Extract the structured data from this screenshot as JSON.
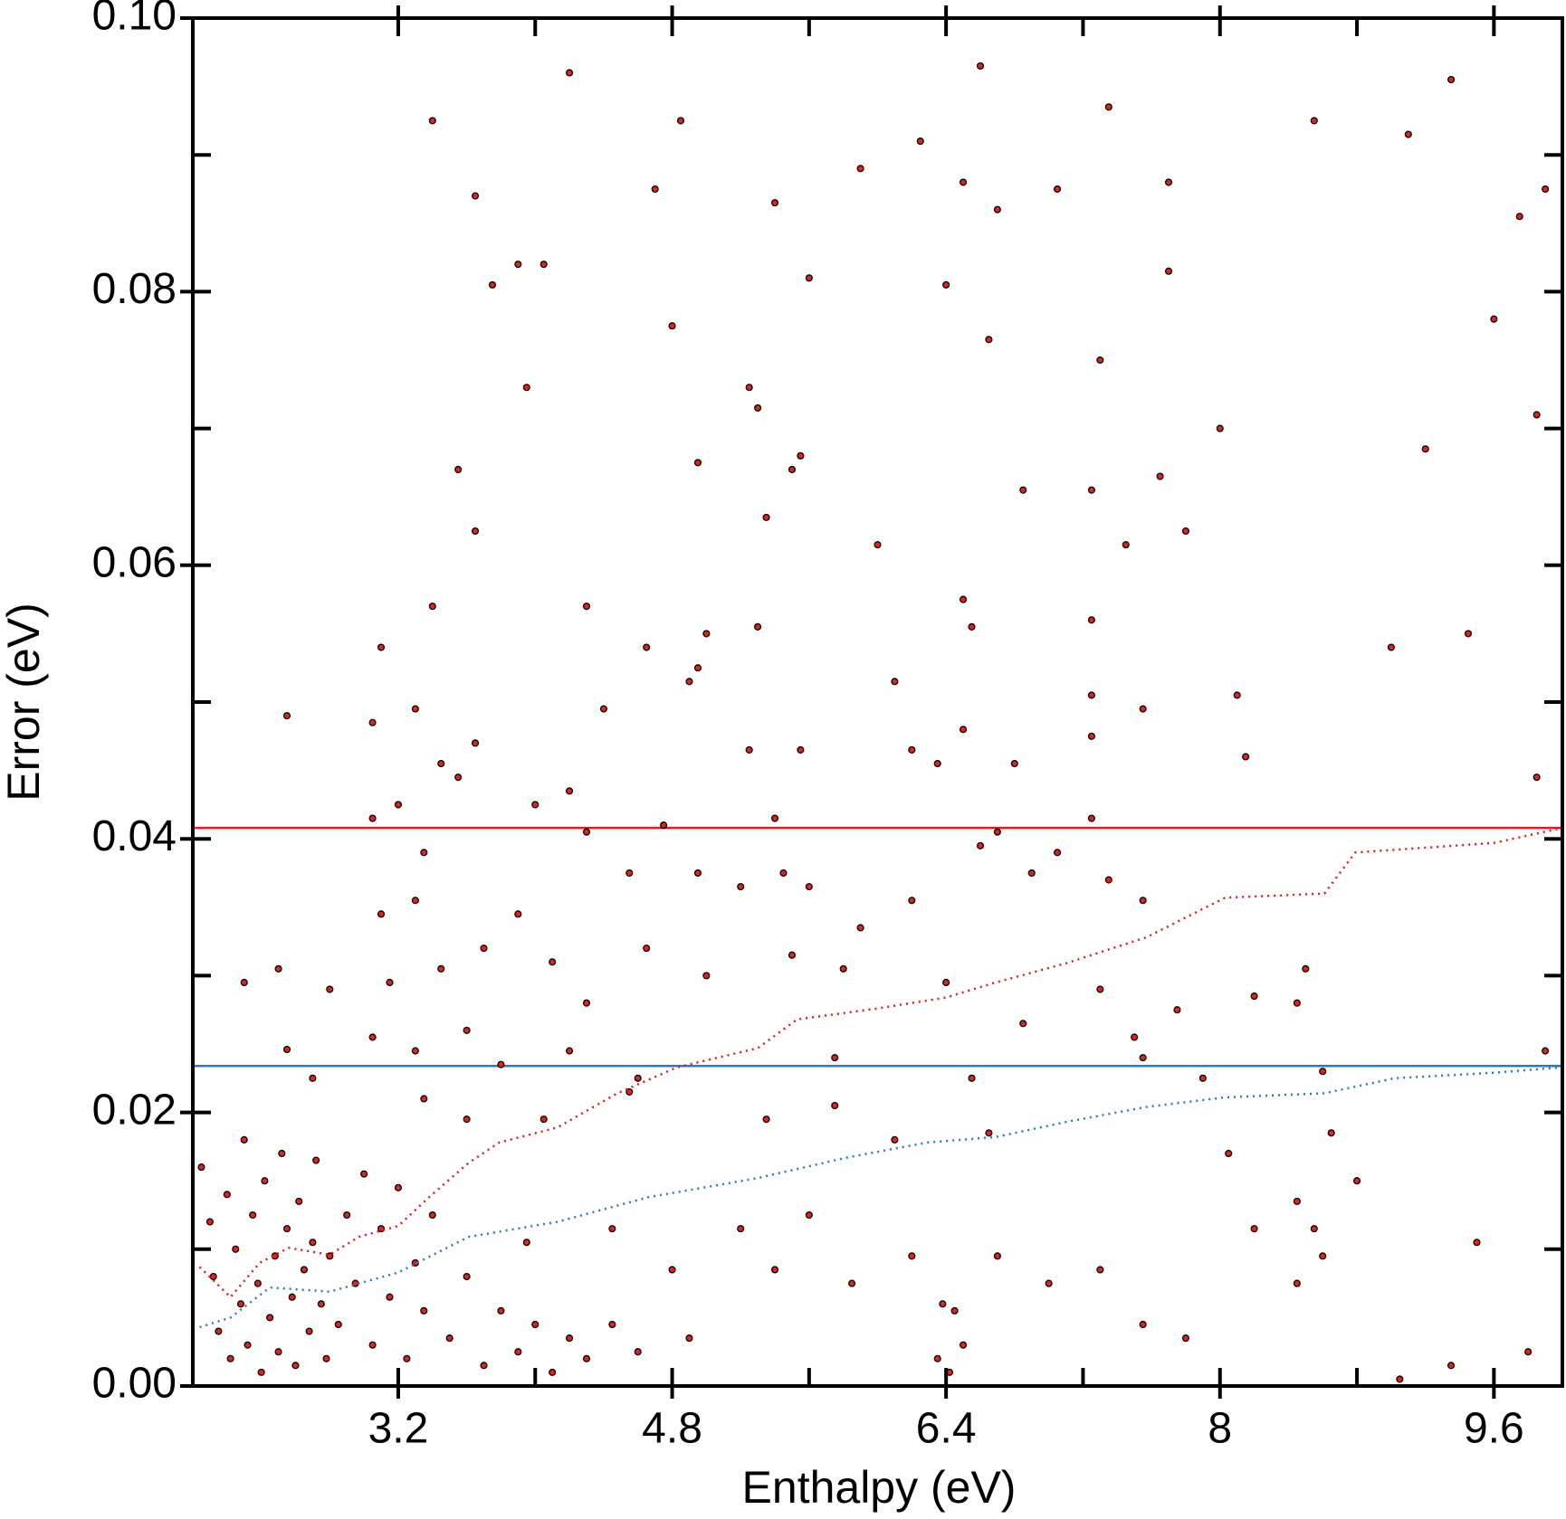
{
  "chart_data": {
    "type": "scatter",
    "x_label": "Enthalpy (eV)",
    "y_label": "Error (eV)",
    "xlim": [
      2.0,
      10.0
    ],
    "ylim": [
      0,
      0.1
    ],
    "xticks": [
      3.2,
      4.8,
      6.4,
      8,
      9.6
    ],
    "xticks_minor": [
      4.0,
      5.6,
      7.2,
      8.8
    ],
    "yticks": [
      {
        "value": 0,
        "label": "0.00"
      },
      {
        "value": 0.02,
        "label": "0.02"
      },
      {
        "value": 0.04,
        "label": "0.04"
      },
      {
        "value": 0.06,
        "label": "0.06"
      },
      {
        "value": 0.08,
        "label": "0.08"
      },
      {
        "value": 0.1,
        "label": "0.10"
      }
    ],
    "yticks_minor": [
      0.01,
      0.03,
      0.05,
      0.07,
      0.09
    ],
    "hlines": [
      {
        "value": 0.0408,
        "color": "#e41a1c"
      },
      {
        "value": 0.0234,
        "color": "#2a7bbd"
      }
    ],
    "series": [
      {
        "style": "points",
        "color": "#e0241b",
        "x": [
          2.5,
          2.55,
          2.3,
          2.55,
          3.4,
          3.65,
          3.9,
          4.05,
          4.2,
          4.7,
          4.85,
          5.4,
          5.6,
          5.9,
          6.25,
          6.5,
          6.6,
          6.7,
          7.05,
          7.35,
          7.7,
          8.55,
          9.35,
          9.1,
          9.9,
          9.75,
          3.75,
          3.95,
          4.8,
          5.25,
          5.3,
          6.4,
          6.65,
          7.3,
          7.7,
          9.6,
          9.2,
          9.85,
          8.0,
          7.8,
          7.65,
          6.85,
          7.25,
          7.45,
          5.5,
          4.95,
          3.55,
          3.65,
          5.35,
          5.55,
          6.0,
          5.3,
          4.3,
          3.4,
          3.1,
          4.95,
          5.0,
          4.65,
          6.1,
          6.5,
          6.55,
          7.25,
          9.0,
          9.45,
          8.1,
          7.55,
          7.25,
          3.05,
          3.3,
          3.45,
          3.65,
          3.55,
          4.2,
          4.4,
          4.9,
          5.25,
          5.55,
          6.2,
          6.35,
          6.5,
          6.8,
          7.25,
          8.15,
          9.85,
          3.05,
          3.2,
          3.35,
          3.3,
          3.1,
          3.15,
          3.05,
          2.8,
          3.45,
          3.6,
          3.7,
          3.9,
          4.0,
          4.3,
          4.55,
          4.75,
          4.95,
          5.2,
          5.4,
          5.45,
          5.6,
          5.9,
          6.2,
          6.6,
          6.7,
          6.9,
          7.05,
          7.35,
          7.25,
          7.55,
          4.1,
          4.3,
          4.65,
          5.0,
          5.5,
          5.8,
          6.4,
          6.85,
          7.3,
          7.5,
          7.75,
          8.2,
          8.45,
          8.5,
          3.3,
          3.8,
          4.2,
          4.6,
          5.75,
          6.55,
          7.55,
          7.9,
          8.6,
          9.9,
          2.7,
          3.35,
          3.6,
          4.05,
          4.55,
          5.35,
          5.75,
          6.1,
          6.65,
          8.05,
          8.65,
          8.45,
          8.55,
          8.8,
          9.5,
          9.05,
          2.05,
          2.1,
          2.12,
          2.15,
          2.2,
          2.22,
          2.25,
          2.28,
          2.3,
          2.32,
          2.35,
          2.38,
          2.4,
          2.42,
          2.45,
          2.48,
          2.5,
          2.52,
          2.55,
          2.58,
          2.6,
          2.62,
          2.65,
          2.68,
          2.7,
          2.72,
          2.75,
          2.78,
          2.8,
          2.85,
          2.9,
          2.95,
          3.0,
          3.05,
          3.1,
          3.15,
          3.2,
          3.25,
          3.3,
          3.35,
          3.4,
          3.5,
          3.6,
          3.7,
          3.8,
          3.9,
          4.0,
          4.1,
          4.2,
          4.3,
          4.45,
          4.6,
          4.9,
          5.2,
          5.4,
          5.6,
          5.85,
          6.2,
          6.35,
          6.38,
          6.42,
          6.45,
          6.5,
          6.7,
          7.0,
          7.3,
          7.55,
          7.8,
          8.2,
          8.45,
          8.6,
          9.35,
          9.8,
          4.8,
          4.45,
          3.95
        ],
        "values": [
          0.0305,
          0.0246,
          0.0295,
          0.049,
          0.0925,
          0.087,
          0.082,
          0.082,
          0.096,
          0.0875,
          0.0925,
          0.0865,
          0.081,
          0.089,
          0.091,
          0.088,
          0.0965,
          0.086,
          0.0875,
          0.0935,
          0.088,
          0.0925,
          0.0955,
          0.0915,
          0.0875,
          0.0855,
          0.0805,
          0.073,
          0.0775,
          0.073,
          0.0715,
          0.0805,
          0.0765,
          0.075,
          0.0815,
          0.078,
          0.0685,
          0.071,
          0.07,
          0.0625,
          0.0665,
          0.0655,
          0.0655,
          0.0615,
          0.067,
          0.0675,
          0.067,
          0.0625,
          0.0635,
          0.068,
          0.0615,
          0.0555,
          0.057,
          0.057,
          0.054,
          0.0525,
          0.055,
          0.054,
          0.0515,
          0.0575,
          0.0555,
          0.056,
          0.054,
          0.055,
          0.0505,
          0.0495,
          0.0505,
          0.0485,
          0.0495,
          0.0455,
          0.047,
          0.0445,
          0.0435,
          0.0495,
          0.0515,
          0.0465,
          0.0465,
          0.0465,
          0.0455,
          0.048,
          0.0455,
          0.0475,
          0.046,
          0.0445,
          0.0415,
          0.0425,
          0.039,
          0.0355,
          0.0345,
          0.0295,
          0.0255,
          0.029,
          0.0305,
          0.026,
          0.032,
          0.0345,
          0.0425,
          0.0405,
          0.0375,
          0.041,
          0.0375,
          0.0365,
          0.0415,
          0.0375,
          0.0365,
          0.0335,
          0.0355,
          0.0395,
          0.0405,
          0.0375,
          0.039,
          0.037,
          0.0415,
          0.0355,
          0.031,
          0.028,
          0.032,
          0.03,
          0.0315,
          0.0305,
          0.0295,
          0.0265,
          0.029,
          0.0255,
          0.0275,
          0.0285,
          0.028,
          0.0305,
          0.0245,
          0.0235,
          0.0245,
          0.0225,
          0.024,
          0.0225,
          0.024,
          0.0225,
          0.023,
          0.0245,
          0.0225,
          0.021,
          0.0195,
          0.0195,
          0.0215,
          0.0195,
          0.0205,
          0.018,
          0.0185,
          0.017,
          0.0185,
          0.0135,
          0.0115,
          0.015,
          0.0105,
          0.0005,
          0.016,
          0.012,
          0.008,
          0.004,
          0.014,
          0.002,
          0.01,
          0.006,
          0.018,
          0.003,
          0.0125,
          0.0075,
          0.001,
          0.015,
          0.005,
          0.0095,
          0.0025,
          0.017,
          0.0115,
          0.0065,
          0.0015,
          0.0135,
          0.0085,
          0.004,
          0.0105,
          0.0165,
          0.006,
          0.002,
          0.0095,
          0.0045,
          0.0125,
          0.0075,
          0.0155,
          0.003,
          0.0115,
          0.0065,
          0.0145,
          0.002,
          0.009,
          0.0055,
          0.0125,
          0.0035,
          0.008,
          0.0015,
          0.0055,
          0.0025,
          0.0045,
          0.001,
          0.0035,
          0.002,
          0.0045,
          0.0025,
          0.0035,
          0.0115,
          0.0085,
          0.0125,
          0.0075,
          0.0095,
          0.002,
          0.006,
          0.001,
          0.0055,
          0.003,
          0.0095,
          0.0075,
          0.0085,
          0.0045,
          0.0035,
          0.0115,
          0.0075,
          0.0095,
          0.0015,
          0.0025,
          0.0085,
          0.0115,
          0.0105
        ]
      },
      {
        "style": "dotted",
        "color": "#e41a1c",
        "x": [
          2.04,
          2.22,
          2.39,
          2.56,
          2.8,
          2.97,
          3.2,
          3.38,
          3.61,
          3.79,
          4.13,
          4.48,
          4.83,
          5.3,
          5.53,
          6.0,
          6.4,
          6.69,
          7.1,
          7.57,
          8.03,
          8.61,
          8.79,
          9.6,
          10.0
        ],
        "values": [
          0.0087,
          0.0065,
          0.009,
          0.0101,
          0.0096,
          0.0109,
          0.0117,
          0.0138,
          0.0163,
          0.0178,
          0.0189,
          0.0214,
          0.0233,
          0.0247,
          0.0268,
          0.0276,
          0.0284,
          0.0295,
          0.0309,
          0.0328,
          0.0357,
          0.036,
          0.039,
          0.0397,
          0.0408
        ]
      },
      {
        "style": "dotted",
        "color": "#2a7bbd",
        "x": [
          2.04,
          2.22,
          2.45,
          2.8,
          3.2,
          3.61,
          4.13,
          4.66,
          5.3,
          5.82,
          6.29,
          6.69,
          7.1,
          7.57,
          8.03,
          8.61,
          9.02,
          9.6,
          10.0
        ],
        "values": [
          0.0043,
          0.005,
          0.0072,
          0.0069,
          0.0083,
          0.0109,
          0.012,
          0.0138,
          0.0152,
          0.0167,
          0.0178,
          0.0182,
          0.0193,
          0.0204,
          0.0211,
          0.0214,
          0.0225,
          0.0229,
          0.0233
        ]
      }
    ]
  }
}
